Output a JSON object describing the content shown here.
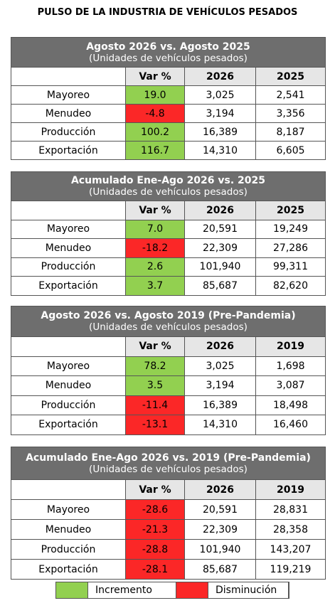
{
  "header": {
    "title": "PULSO DE LA INDUSTRIA DE VEHÍCULOS PESADOS"
  },
  "tables": [
    {
      "title": "Agosto 2026 vs. Agosto 2025",
      "subtitle": "(Unidades de vehículos pesados)",
      "columns": [
        "Var %",
        "2026",
        "2025"
      ],
      "rows": [
        {
          "label": "Mayoreo",
          "cells": [
            "19.0",
            "3,025",
            "2,541"
          ]
        },
        {
          "label": "Menudeo",
          "cells": [
            "-4.8",
            "3,194",
            "3,356"
          ]
        },
        {
          "label": "Producción",
          "cells": [
            "100.2",
            "16,389",
            "8,187"
          ]
        },
        {
          "label": "Exportación",
          "cells": [
            "116.7",
            "14,310",
            "6,605"
          ]
        }
      ]
    },
    {
      "title": "Acumulado Ene-Ago 2026 vs. 2025",
      "subtitle": "(Unidades de vehículos pesados)",
      "columns": [
        "Var %",
        "2026",
        "2025"
      ],
      "rows": [
        {
          "label": "Mayoreo",
          "cells": [
            "7.0",
            "20,591",
            "19,249"
          ]
        },
        {
          "label": "Menudeo",
          "cells": [
            "-18.2",
            "22,309",
            "27,286"
          ]
        },
        {
          "label": "Producción",
          "cells": [
            "2.6",
            "101,940",
            "99,311"
          ]
        },
        {
          "label": "Exportación",
          "cells": [
            "3.7",
            "85,687",
            "82,620"
          ]
        }
      ]
    },
    {
      "title": "Agosto 2026 vs. Agosto 2019 (Pre-Pandemia)",
      "subtitle": "(Unidades de vehículos pesados)",
      "columns": [
        "Var %",
        "2026",
        "2019"
      ],
      "rows": [
        {
          "label": "Mayoreo",
          "cells": [
            "78.2",
            "3,025",
            "1,698"
          ]
        },
        {
          "label": "Menudeo",
          "cells": [
            "3.5",
            "3,194",
            "3,087"
          ]
        },
        {
          "label": "Producción",
          "cells": [
            "-11.4",
            "16,389",
            "18,498"
          ]
        },
        {
          "label": "Exportación",
          "cells": [
            "-13.1",
            "14,310",
            "16,460"
          ]
        }
      ]
    },
    {
      "title": "Acumulado Ene-Ago 2026 vs. 2019 (Pre-Pandemia)",
      "subtitle": "(Unidades de vehículos pesados)",
      "columns": [
        "Var %",
        "2026",
        "2019"
      ],
      "rows": [
        {
          "label": "Mayoreo",
          "cells": [
            "-28.6",
            "20,591",
            "28,831"
          ]
        },
        {
          "label": "Menudeo",
          "cells": [
            "-21.3",
            "22,309",
            "28,358"
          ]
        },
        {
          "label": "Producción",
          "cells": [
            "-28.8",
            "101,940",
            "143,207"
          ]
        },
        {
          "label": "Exportación",
          "cells": [
            "-28.1",
            "85,687",
            "119,219"
          ]
        }
      ]
    }
  ],
  "legend": {
    "items": [
      {
        "label": "Incremento",
        "color": "#92d050"
      },
      {
        "label": "Disminución",
        "color": "#fb2727"
      }
    ]
  }
}
